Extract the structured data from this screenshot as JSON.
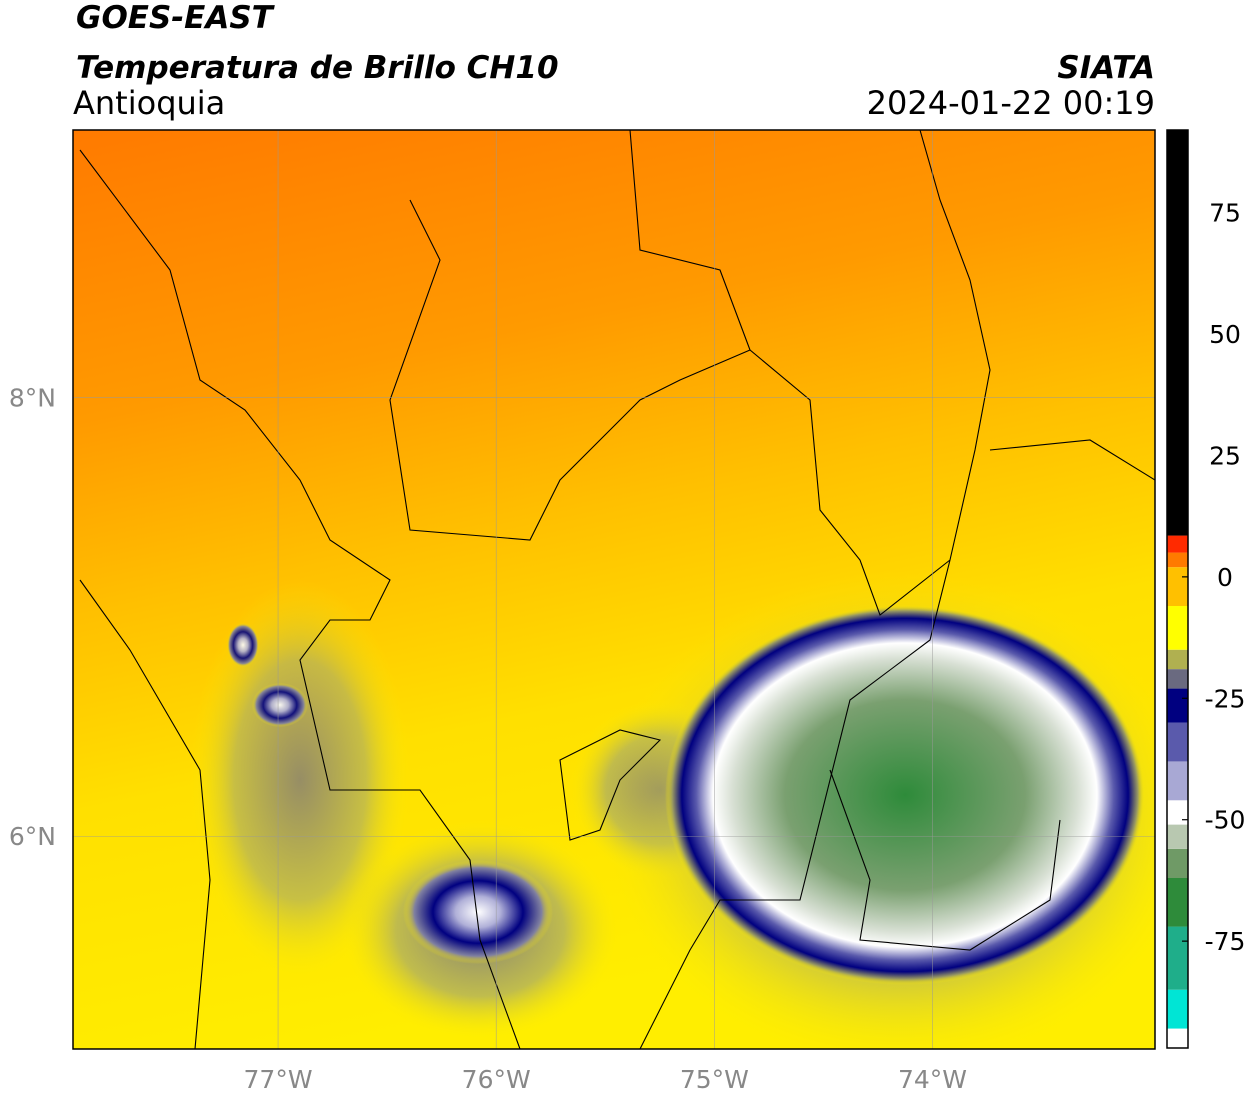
{
  "header": {
    "satellite": "GOES-EAST",
    "product": "Temperatura de Brillo CH10",
    "region": "Antioquia",
    "source": "SIATA",
    "datetime": "2024-01-22 00:19"
  },
  "map": {
    "xlim": [
      -77.94,
      -72.98
    ],
    "ylim": [
      5.03,
      9.22
    ],
    "xticks": [
      {
        "value": -77,
        "label": "77°W"
      },
      {
        "value": -76,
        "label": "76°W"
      },
      {
        "value": -75,
        "label": "75°W"
      },
      {
        "value": -74,
        "label": "74°W"
      }
    ],
    "yticks": [
      {
        "value": 6,
        "label": "6°N"
      },
      {
        "value": 8,
        "label": "8°N"
      }
    ],
    "grid": true
  },
  "colorbar": {
    "lim": [
      -97,
      92
    ],
    "ticks": [
      -75,
      -50,
      -25,
      0,
      25,
      50,
      75
    ],
    "levels": [
      {
        "value": -97,
        "color": "#ffffff"
      },
      {
        "value": -93,
        "color": "#00e5d5"
      },
      {
        "value": -85,
        "color": "#1fae8a"
      },
      {
        "value": -72,
        "color": "#2e8b3a"
      },
      {
        "value": -62,
        "color": "#6f9a66"
      },
      {
        "value": -56,
        "color": "#b8c8b0"
      },
      {
        "value": -51,
        "color": "#ffffff"
      },
      {
        "value": -46,
        "color": "#a8a8d4"
      },
      {
        "value": -38,
        "color": "#5a5aac"
      },
      {
        "value": -30,
        "color": "#000080"
      },
      {
        "value": -23,
        "color": "#6a6a80"
      },
      {
        "value": -19,
        "color": "#b0b050"
      },
      {
        "value": -15,
        "color": "#ffff00"
      },
      {
        "value": -6,
        "color": "#ffc000"
      },
      {
        "value": 2,
        "color": "#ff7a00"
      },
      {
        "value": 5,
        "color": "#ff2a00"
      },
      {
        "value": 8.5,
        "color": "#000000"
      }
    ]
  }
}
